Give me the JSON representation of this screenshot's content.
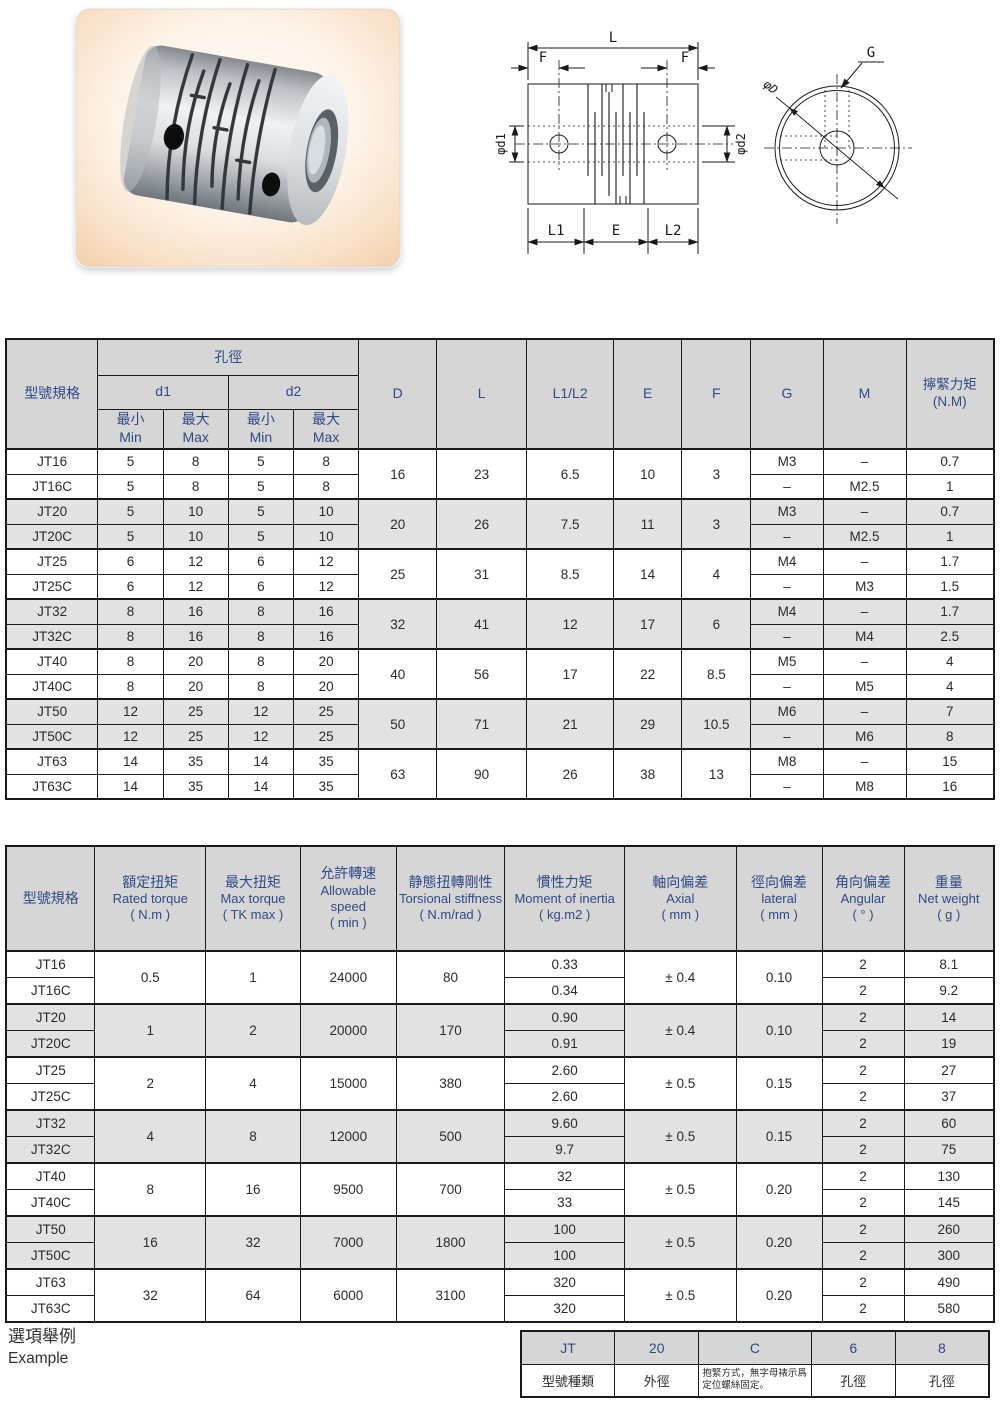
{
  "colors": {
    "accent_blue": "#2e4a87",
    "header_gray": "#d6d6d6",
    "stripe_gray": "#e2e2e2",
    "border": "#1a1a1a",
    "photo_peach": "#f3cda8"
  },
  "photo": {
    "alt": "slit-type flexible shaft coupling"
  },
  "drawing": {
    "front": {
      "L": "L",
      "F": "F",
      "d1": "φd1",
      "d2": "φd2",
      "L1": "L1",
      "E": "E",
      "L2": "L2"
    },
    "side": {
      "G": "G",
      "D": "φD"
    }
  },
  "table1": {
    "header": {
      "model": "型號規格",
      "bore": "孔徑",
      "d1": "d1",
      "d2": "d2",
      "min_zh": "最小",
      "min_en": "Min",
      "max_zh": "最大",
      "max_en": "Max",
      "D": "D",
      "L": "L",
      "L1L2": "L1/L2",
      "E": "E",
      "F": "F",
      "G": "G",
      "M": "M",
      "torque_zh": "擰緊力矩",
      "torque_unit": "(N.M)"
    },
    "groups": [
      {
        "shade": false,
        "D": "16",
        "L": "23",
        "L1L2": "6.5",
        "E": "10",
        "F": "3",
        "rows": [
          {
            "model": "JT16",
            "d1min": "5",
            "d1max": "8",
            "d2min": "5",
            "d2max": "8",
            "G": "M3",
            "M": "–",
            "torque": "0.7"
          },
          {
            "model": "JT16C",
            "d1min": "5",
            "d1max": "8",
            "d2min": "5",
            "d2max": "8",
            "G": "–",
            "M": "M2.5",
            "torque": "1"
          }
        ]
      },
      {
        "shade": true,
        "D": "20",
        "L": "26",
        "L1L2": "7.5",
        "E": "11",
        "F": "3",
        "rows": [
          {
            "model": "JT20",
            "d1min": "5",
            "d1max": "10",
            "d2min": "5",
            "d2max": "10",
            "G": "M3",
            "M": "–",
            "torque": "0.7"
          },
          {
            "model": "JT20C",
            "d1min": "5",
            "d1max": "10",
            "d2min": "5",
            "d2max": "10",
            "G": "–",
            "M": "M2.5",
            "torque": "1"
          }
        ]
      },
      {
        "shade": false,
        "D": "25",
        "L": "31",
        "L1L2": "8.5",
        "E": "14",
        "F": "4",
        "rows": [
          {
            "model": "JT25",
            "d1min": "6",
            "d1max": "12",
            "d2min": "6",
            "d2max": "12",
            "G": "M4",
            "M": "–",
            "torque": "1.7"
          },
          {
            "model": "JT25C",
            "d1min": "6",
            "d1max": "12",
            "d2min": "6",
            "d2max": "12",
            "G": "–",
            "M": "M3",
            "torque": "1.5"
          }
        ]
      },
      {
        "shade": true,
        "D": "32",
        "L": "41",
        "L1L2": "12",
        "E": "17",
        "F": "6",
        "rows": [
          {
            "model": "JT32",
            "d1min": "8",
            "d1max": "16",
            "d2min": "8",
            "d2max": "16",
            "G": "M4",
            "M": "–",
            "torque": "1.7"
          },
          {
            "model": "JT32C",
            "d1min": "8",
            "d1max": "16",
            "d2min": "8",
            "d2max": "16",
            "G": "–",
            "M": "M4",
            "torque": "2.5"
          }
        ]
      },
      {
        "shade": false,
        "D": "40",
        "L": "56",
        "L1L2": "17",
        "E": "22",
        "F": "8.5",
        "rows": [
          {
            "model": "JT40",
            "d1min": "8",
            "d1max": "20",
            "d2min": "8",
            "d2max": "20",
            "G": "M5",
            "M": "–",
            "torque": "4"
          },
          {
            "model": "JT40C",
            "d1min": "8",
            "d1max": "20",
            "d2min": "8",
            "d2max": "20",
            "G": "–",
            "M": "M5",
            "torque": "4"
          }
        ]
      },
      {
        "shade": true,
        "D": "50",
        "L": "71",
        "L1L2": "21",
        "E": "29",
        "F": "10.5",
        "rows": [
          {
            "model": "JT50",
            "d1min": "12",
            "d1max": "25",
            "d2min": "12",
            "d2max": "25",
            "G": "M6",
            "M": "–",
            "torque": "7"
          },
          {
            "model": "JT50C",
            "d1min": "12",
            "d1max": "25",
            "d2min": "12",
            "d2max": "25",
            "G": "–",
            "M": "M6",
            "torque": "8"
          }
        ]
      },
      {
        "shade": false,
        "D": "63",
        "L": "90",
        "L1L2": "26",
        "E": "38",
        "F": "13",
        "rows": [
          {
            "model": "JT63",
            "d1min": "14",
            "d1max": "35",
            "d2min": "14",
            "d2max": "35",
            "G": "M8",
            "M": "–",
            "torque": "15"
          },
          {
            "model": "JT63C",
            "d1min": "14",
            "d1max": "35",
            "d2min": "14",
            "d2max": "35",
            "G": "–",
            "M": "M8",
            "torque": "16"
          }
        ]
      }
    ]
  },
  "table2": {
    "header": [
      {
        "zh": "型號規格",
        "en": "",
        "unit": ""
      },
      {
        "zh": "額定扭矩",
        "en": "Rated torque",
        "unit": "( N.m )"
      },
      {
        "zh": "最大扭矩",
        "en": "Max torque",
        "unit": "( TK max )"
      },
      {
        "zh": "允許轉速",
        "en": "Allowable speed",
        "unit": "( min )"
      },
      {
        "zh": "静態扭轉剛性",
        "en": "Torsional stiffness",
        "unit": "( N.m/rad )"
      },
      {
        "zh": "慣性力矩",
        "en": "Moment of inertia",
        "unit": "( kg.m2 )"
      },
      {
        "zh": "軸向偏差",
        "en": "Axial",
        "unit": "( mm )"
      },
      {
        "zh": "徑向偏差",
        "en": "lateral",
        "unit": "( mm )"
      },
      {
        "zh": "角向偏差",
        "en": "Angular",
        "unit": "( ° )"
      },
      {
        "zh": "重量",
        "en": "Net weight",
        "unit": "( g )"
      }
    ],
    "groups": [
      {
        "shade": false,
        "rated": "0.5",
        "max": "1",
        "speed": "24000",
        "stiff": "80",
        "axial": "± 0.4",
        "lateral": "0.10",
        "rows": [
          {
            "model": "JT16",
            "inertia": "0.33",
            "angular": "2",
            "weight": "8.1"
          },
          {
            "model": "JT16C",
            "inertia": "0.34",
            "angular": "2",
            "weight": "9.2"
          }
        ]
      },
      {
        "shade": true,
        "rated": "1",
        "max": "2",
        "speed": "20000",
        "stiff": "170",
        "axial": "± 0.4",
        "lateral": "0.10",
        "rows": [
          {
            "model": "JT20",
            "inertia": "0.90",
            "angular": "2",
            "weight": "14"
          },
          {
            "model": "JT20C",
            "inertia": "0.91",
            "angular": "2",
            "weight": "19"
          }
        ]
      },
      {
        "shade": false,
        "rated": "2",
        "max": "4",
        "speed": "15000",
        "stiff": "380",
        "axial": "± 0.5",
        "lateral": "0.15",
        "rows": [
          {
            "model": "JT25",
            "inertia": "2.60",
            "angular": "2",
            "weight": "27"
          },
          {
            "model": "JT25C",
            "inertia": "2.60",
            "angular": "2",
            "weight": "37"
          }
        ]
      },
      {
        "shade": true,
        "rated": "4",
        "max": "8",
        "speed": "12000",
        "stiff": "500",
        "axial": "± 0.5",
        "lateral": "0.15",
        "rows": [
          {
            "model": "JT32",
            "inertia": "9.60",
            "angular": "2",
            "weight": "60"
          },
          {
            "model": "JT32C",
            "inertia": "9.7",
            "angular": "2",
            "weight": "75"
          }
        ]
      },
      {
        "shade": false,
        "rated": "8",
        "max": "16",
        "speed": "9500",
        "stiff": "700",
        "axial": "± 0.5",
        "lateral": "0.20",
        "rows": [
          {
            "model": "JT40",
            "inertia": "32",
            "angular": "2",
            "weight": "130"
          },
          {
            "model": "JT40C",
            "inertia": "33",
            "angular": "2",
            "weight": "145"
          }
        ]
      },
      {
        "shade": true,
        "rated": "16",
        "max": "32",
        "speed": "7000",
        "stiff": "1800",
        "axial": "± 0.5",
        "lateral": "0.20",
        "rows": [
          {
            "model": "JT50",
            "inertia": "100",
            "angular": "2",
            "weight": "260"
          },
          {
            "model": "JT50C",
            "inertia": "100",
            "angular": "2",
            "weight": "300"
          }
        ]
      },
      {
        "shade": false,
        "rated": "32",
        "max": "64",
        "speed": "6000",
        "stiff": "3100",
        "axial": "± 0.5",
        "lateral": "0.20",
        "rows": [
          {
            "model": "JT63",
            "inertia": "320",
            "angular": "2",
            "weight": "490"
          },
          {
            "model": "JT63C",
            "inertia": "320",
            "angular": "2",
            "weight": "580"
          }
        ]
      }
    ]
  },
  "example": {
    "title_zh": "選項舉例",
    "title_en": "Example",
    "columns": [
      {
        "code": "JT",
        "desc": "型號種類",
        "small": false
      },
      {
        "code": "20",
        "desc": "外徑",
        "small": false
      },
      {
        "code": "C",
        "desc": "抱緊方式，無字母裱示爲定位螺絲固定。",
        "small": true
      },
      {
        "code": "6",
        "desc": "孔徑",
        "small": false
      },
      {
        "code": "8",
        "desc": "孔徑",
        "small": false
      }
    ]
  }
}
